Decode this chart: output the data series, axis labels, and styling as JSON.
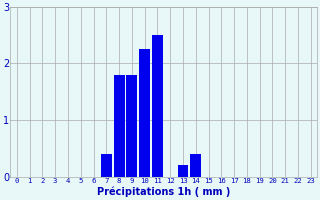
{
  "hours": [
    0,
    1,
    2,
    3,
    4,
    5,
    6,
    7,
    8,
    9,
    10,
    11,
    12,
    13,
    14,
    15,
    16,
    17,
    18,
    19,
    20,
    21,
    22,
    23
  ],
  "values": [
    0,
    0,
    0,
    0,
    0,
    0,
    0,
    0.4,
    1.8,
    1.8,
    2.25,
    2.5,
    0,
    0.2,
    0.4,
    0,
    0,
    0,
    0,
    0,
    0,
    0,
    0,
    0
  ],
  "bar_color": "#0000ee",
  "background_color": "#e8f8f8",
  "grid_color": "#aaaaaa",
  "xlabel": "Précipitations 1h ( mm )",
  "xlabel_color": "#0000bb",
  "tick_color": "#0000bb",
  "ylim": [
    0,
    3
  ],
  "yticks": [
    0,
    1,
    2,
    3
  ],
  "xlim": [
    -0.5,
    23.5
  ],
  "tick_fontsize": 5.2,
  "ylabel_fontsize": 7.0
}
